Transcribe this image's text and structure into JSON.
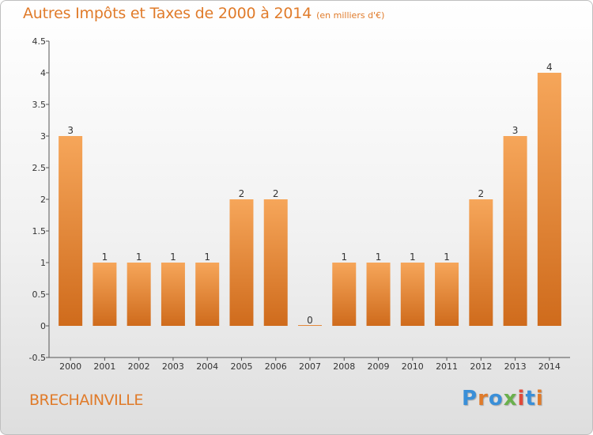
{
  "title": "Autres Impôts et Taxes de 2000 à 2014",
  "subtitle": "(en milliers d'€)",
  "location": "BRECHAINVILLE",
  "logo": {
    "text": "Proxiti",
    "colors": [
      "#3a8fd8",
      "#e07b2a",
      "#3a8fd8",
      "#6ab04c",
      "#e04a3a",
      "#3a8fd8",
      "#e07b2a"
    ]
  },
  "colors": {
    "accent": "#e07b2a",
    "bar_light": "#f6a65a",
    "bar_dark": "#cf6b1c"
  },
  "chart_data": {
    "type": "bar",
    "title": "Autres Impôts et Taxes de 2000 à 2014",
    "subtitle": "(en milliers d'€)",
    "categories": [
      "2000",
      "2001",
      "2002",
      "2003",
      "2004",
      "2005",
      "2006",
      "2007",
      "2008",
      "2009",
      "2010",
      "2011",
      "2012",
      "2013",
      "2014"
    ],
    "values": [
      3,
      1,
      1,
      1,
      1,
      2,
      2,
      0,
      1,
      1,
      1,
      1,
      2,
      3,
      4
    ],
    "data_labels": [
      "3",
      "1",
      "1",
      "1",
      "1",
      "2",
      "2",
      "0",
      "1",
      "1",
      "1",
      "1",
      "2",
      "3",
      "4"
    ],
    "ylim": [
      -0.5,
      4.5
    ],
    "yticks": [
      -0.5,
      0,
      0.5,
      1,
      1.5,
      2,
      2.5,
      3,
      3.5,
      4,
      4.5
    ],
    "ytick_labels": [
      "-0.5",
      "0",
      "0.5",
      "1",
      "1.5",
      "2",
      "2.5",
      "3",
      "3.5",
      "4",
      "4.5"
    ],
    "grid": false
  }
}
